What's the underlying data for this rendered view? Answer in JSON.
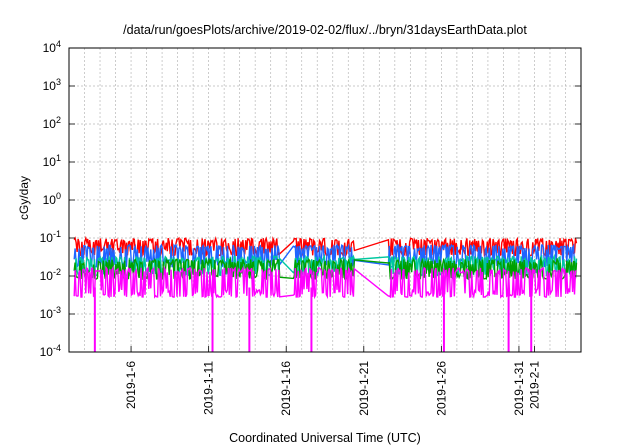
{
  "chart_data": {
    "type": "line",
    "title": "/data/run/goesPlots/archive/2019-02-02/flux/../bryn/31daysEarthData.plot",
    "xlabel": "Coordinated Universal Time (UTC)",
    "ylabel": "cGy/day",
    "y_scale": "log",
    "ylim": [
      0.0001,
      10000
    ],
    "y_ticks": [
      {
        "value": 0.0001,
        "base": "10",
        "exp": "-4"
      },
      {
        "value": 0.001,
        "base": "10",
        "exp": "-3"
      },
      {
        "value": 0.01,
        "base": "10",
        "exp": "-2"
      },
      {
        "value": 0.1,
        "base": "10",
        "exp": "-1"
      },
      {
        "value": 1,
        "base": "10",
        "exp": "0"
      },
      {
        "value": 10,
        "base": "10",
        "exp": "1"
      },
      {
        "value": 100,
        "base": "10",
        "exp": "2"
      },
      {
        "value": 1000,
        "base": "10",
        "exp": "3"
      },
      {
        "value": 10000,
        "base": "10",
        "exp": "4"
      }
    ],
    "xlim": [
      "2019-01-02",
      "2019-02-04"
    ],
    "x_ticks": [
      {
        "date": "2019-01-06",
        "label": "2019-1-6"
      },
      {
        "date": "2019-01-11",
        "label": "2019-1-11"
      },
      {
        "date": "2019-01-16",
        "label": "2019-1-16"
      },
      {
        "date": "2019-01-21",
        "label": "2019-1-21"
      },
      {
        "date": "2019-01-26",
        "label": "2019-1-26"
      },
      {
        "date": "2019-01-31",
        "label": "2019-1-31"
      },
      {
        "date": "2019-02-01",
        "label": "2019-2-1"
      }
    ],
    "grid": true,
    "data_gaps": [
      [
        "2019-01-15 14:00",
        "2019-01-16 10:00"
      ],
      [
        "2019-01-20 10:00",
        "2019-01-22 14:00"
      ]
    ],
    "series": [
      {
        "color": "#ff0000",
        "typical_max": 0.09,
        "typical_min": 0.05
      },
      {
        "color": "#1e64ff",
        "typical_max": 0.06,
        "typical_min": 0.025
      },
      {
        "color": "#00c8a0",
        "typical_max": 0.03,
        "typical_min": 0.015
      },
      {
        "color": "#00a000",
        "typical_max": 0.025,
        "typical_min": 0.012
      },
      {
        "color": "#ff00ff",
        "typical_max": 0.015,
        "typical_min": 0.004
      }
    ],
    "dropouts": [
      {
        "date": "2019-01-03 16:00",
        "value": 0.0001
      },
      {
        "date": "2019-01-11 06:00",
        "value": 0.0001
      },
      {
        "date": "2019-01-13 15:00",
        "value": 0.0001
      },
      {
        "date": "2019-01-17 15:00",
        "value": 0.0001
      },
      {
        "date": "2019-01-26 04:00",
        "value": 0.0001
      },
      {
        "date": "2019-01-30 08:00",
        "value": 0.0001
      },
      {
        "date": "2019-01-31 19:00",
        "value": 0.0001
      }
    ]
  }
}
